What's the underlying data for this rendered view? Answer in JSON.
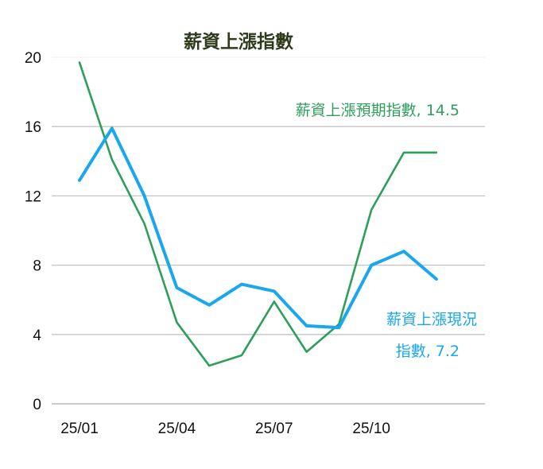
{
  "chart_data": {
    "type": "line",
    "title": "薪資上漲指數",
    "xlabel": "",
    "ylabel": "",
    "categories": [
      "25/01",
      "25/02",
      "25/03",
      "25/04",
      "25/05",
      "25/06",
      "25/07",
      "25/08",
      "25/09",
      "25/10",
      "25/11",
      "25/12"
    ],
    "x_tick_labels": [
      "25/01",
      "25/04",
      "25/07",
      "25/10"
    ],
    "y_ticks": [
      0,
      4,
      8,
      12,
      16,
      20
    ],
    "ylim": [
      0,
      20
    ],
    "grid": "horizontal",
    "series": [
      {
        "name": "薪資上漲預期指數",
        "color": "#2e9e5b",
        "values": [
          19.7,
          14.1,
          10.4,
          4.7,
          2.2,
          2.8,
          5.9,
          3.0,
          4.6,
          11.2,
          14.5,
          14.5
        ],
        "label_line1": "薪資上漲預期指數, 14.5",
        "label_line2": ""
      },
      {
        "name": "薪資上漲現況指數",
        "color": "#1aa7ec",
        "values": [
          12.9,
          15.9,
          12.0,
          6.7,
          5.7,
          6.9,
          6.5,
          4.5,
          4.4,
          8.0,
          8.8,
          7.2
        ],
        "label_line1": "薪資上漲現況",
        "label_line2": "指數, 7.2"
      }
    ]
  }
}
